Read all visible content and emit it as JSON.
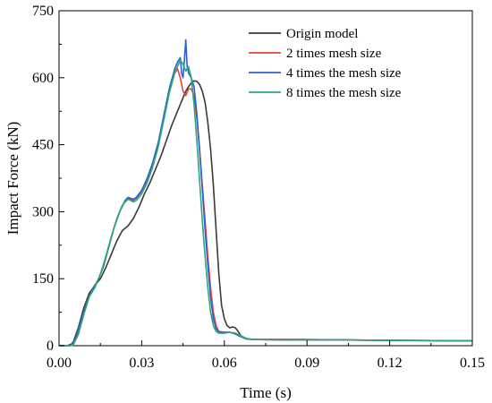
{
  "chart_data": {
    "type": "line",
    "title": "",
    "xlabel": "Time (s)",
    "ylabel": "Impact Force (kN)",
    "xlim": [
      0.0,
      0.15
    ],
    "ylim": [
      0,
      750
    ],
    "xticks": [
      "0.00",
      "0.03",
      "0.06",
      "0.09",
      "0.12",
      "0.15"
    ],
    "yticks": [
      "0",
      "150",
      "300",
      "450",
      "600",
      "750"
    ],
    "xtick_values": [
      0.0,
      0.03,
      0.06,
      0.09,
      0.12,
      0.15
    ],
    "ytick_values": [
      0,
      150,
      300,
      450,
      600,
      750
    ],
    "grid": false,
    "legend_position": "top-right",
    "series": [
      {
        "name": "Origin model",
        "color": "#3a3a3a",
        "x": [
          0.0,
          0.003,
          0.005,
          0.007,
          0.009,
          0.011,
          0.013,
          0.015,
          0.017,
          0.019,
          0.021,
          0.023,
          0.025,
          0.027,
          0.029,
          0.031,
          0.033,
          0.035,
          0.037,
          0.039,
          0.041,
          0.043,
          0.045,
          0.046,
          0.047,
          0.048,
          0.049,
          0.05,
          0.051,
          0.052,
          0.053,
          0.054,
          0.055,
          0.056,
          0.057,
          0.058,
          0.059,
          0.06,
          0.061,
          0.062,
          0.063,
          0.064,
          0.065,
          0.066,
          0.068,
          0.07,
          0.075,
          0.08,
          0.09,
          0.1,
          0.12,
          0.15
        ],
        "y": [
          0,
          0,
          5,
          40,
          85,
          118,
          135,
          150,
          175,
          205,
          235,
          258,
          268,
          285,
          310,
          340,
          365,
          395,
          425,
          460,
          495,
          525,
          555,
          570,
          580,
          588,
          593,
          592,
          585,
          570,
          545,
          500,
          440,
          360,
          260,
          160,
          90,
          60,
          45,
          40,
          42,
          40,
          32,
          22,
          16,
          14,
          14,
          14,
          14,
          13,
          12,
          11
        ]
      },
      {
        "name": "2 times mesh size",
        "color": "#e8403a",
        "x": [
          0.0,
          0.004,
          0.006,
          0.008,
          0.01,
          0.012,
          0.014,
          0.016,
          0.018,
          0.02,
          0.022,
          0.024,
          0.025,
          0.026,
          0.027,
          0.028,
          0.03,
          0.032,
          0.034,
          0.036,
          0.038,
          0.04,
          0.042,
          0.043,
          0.044,
          0.045,
          0.046,
          0.047,
          0.048,
          0.049,
          0.05,
          0.051,
          0.052,
          0.053,
          0.054,
          0.055,
          0.056,
          0.057,
          0.058,
          0.06,
          0.062,
          0.064,
          0.066,
          0.068,
          0.07,
          0.08,
          0.1,
          0.12,
          0.15
        ],
        "y": [
          0,
          0,
          15,
          55,
          95,
          125,
          145,
          175,
          220,
          265,
          300,
          325,
          330,
          328,
          325,
          330,
          345,
          370,
          405,
          450,
          510,
          570,
          610,
          620,
          600,
          570,
          560,
          575,
          575,
          560,
          510,
          440,
          360,
          280,
          200,
          130,
          75,
          45,
          32,
          30,
          30,
          28,
          22,
          16,
          14,
          14,
          13,
          12,
          11
        ]
      },
      {
        "name": "4 times the mesh size",
        "color": "#2f5fd0",
        "x": [
          0.0,
          0.004,
          0.006,
          0.008,
          0.01,
          0.012,
          0.014,
          0.016,
          0.018,
          0.02,
          0.022,
          0.024,
          0.025,
          0.026,
          0.027,
          0.028,
          0.03,
          0.032,
          0.034,
          0.036,
          0.038,
          0.04,
          0.042,
          0.043,
          0.044,
          0.0445,
          0.045,
          0.0455,
          0.046,
          0.0465,
          0.047,
          0.048,
          0.049,
          0.05,
          0.051,
          0.052,
          0.053,
          0.054,
          0.055,
          0.056,
          0.057,
          0.058,
          0.06,
          0.062,
          0.064,
          0.066,
          0.068,
          0.07,
          0.08,
          0.1,
          0.12,
          0.15
        ],
        "y": [
          0,
          0,
          15,
          55,
          95,
          125,
          145,
          175,
          220,
          265,
          300,
          325,
          332,
          330,
          328,
          332,
          348,
          375,
          410,
          455,
          515,
          575,
          620,
          635,
          645,
          610,
          600,
          640,
          685,
          625,
          610,
          600,
          580,
          520,
          440,
          350,
          260,
          180,
          110,
          60,
          38,
          30,
          30,
          30,
          26,
          20,
          15,
          14,
          13,
          13,
          12,
          11
        ]
      },
      {
        "name": "8 times the mesh size",
        "color": "#2aa87a",
        "x": [
          0.0,
          0.005,
          0.007,
          0.009,
          0.011,
          0.013,
          0.015,
          0.017,
          0.019,
          0.021,
          0.023,
          0.025,
          0.026,
          0.027,
          0.028,
          0.03,
          0.032,
          0.034,
          0.036,
          0.038,
          0.04,
          0.042,
          0.043,
          0.044,
          0.045,
          0.046,
          0.047,
          0.048,
          0.049,
          0.05,
          0.051,
          0.052,
          0.053,
          0.054,
          0.055,
          0.056,
          0.057,
          0.058,
          0.06,
          0.062,
          0.064,
          0.066,
          0.068,
          0.07,
          0.08,
          0.1,
          0.12,
          0.15
        ],
        "y": [
          0,
          0,
          25,
          70,
          110,
          130,
          160,
          200,
          245,
          285,
          315,
          328,
          325,
          322,
          325,
          340,
          365,
          400,
          445,
          505,
          565,
          612,
          625,
          640,
          630,
          615,
          625,
          600,
          540,
          460,
          370,
          280,
          200,
          130,
          75,
          45,
          32,
          28,
          28,
          30,
          28,
          22,
          16,
          14,
          13,
          13,
          12,
          11
        ]
      }
    ]
  }
}
